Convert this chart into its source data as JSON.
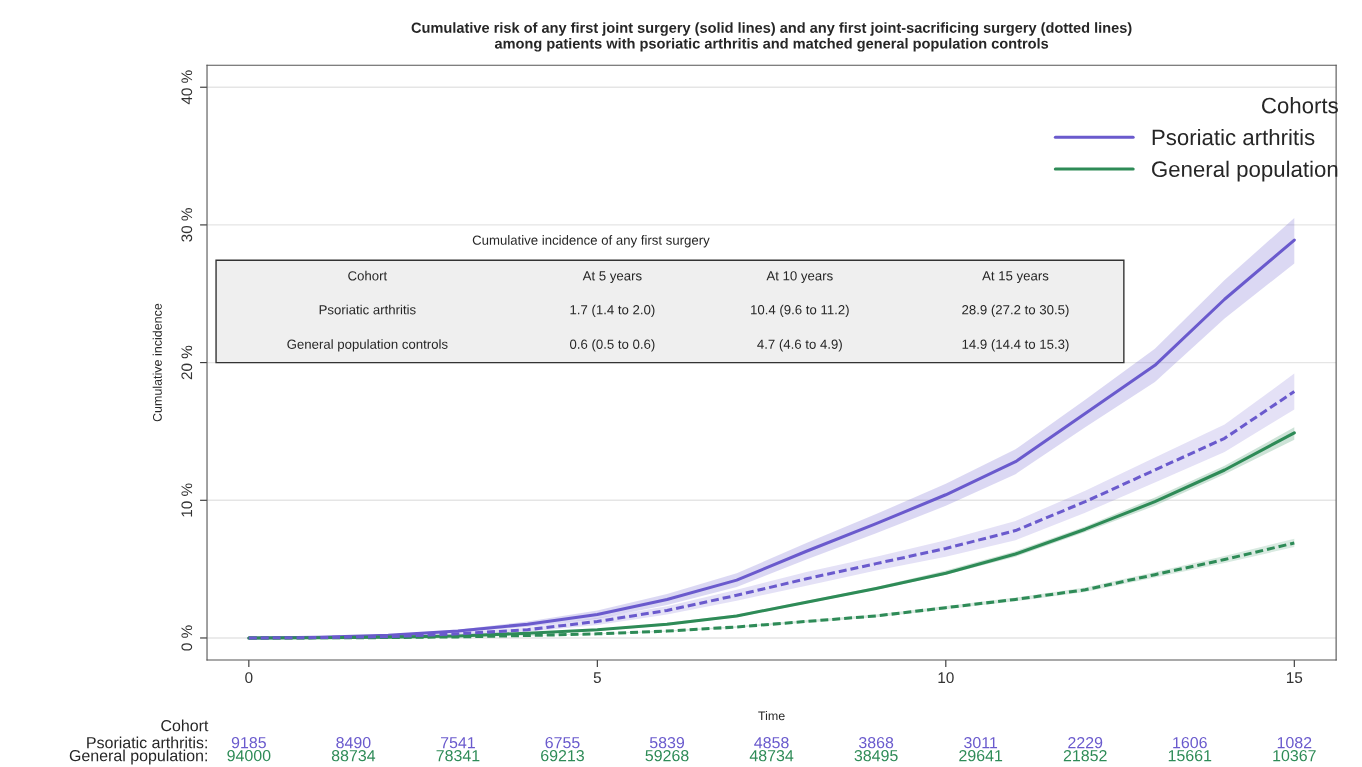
{
  "chart_data": {
    "type": "line",
    "title": "Cumulative risk of any first joint surgery (solid lines) and any first joint-sacrificing surgery (dotted lines)\namong patients with psoriatic arthritis and matched general population controls",
    "xlabel": "Time",
    "ylabel": "Cumulative incidence",
    "legend_title": "Cohorts",
    "x": [
      0,
      1,
      2,
      3,
      4,
      5,
      6,
      7,
      8,
      9,
      10,
      11,
      12,
      13,
      14,
      15
    ],
    "series": [
      {
        "name": "Psoriatic arthritis",
        "color": "#6a5acd",
        "line_style": "solid",
        "values": [
          0,
          0.05,
          0.2,
          0.5,
          1.0,
          1.7,
          2.8,
          4.2,
          6.3,
          8.3,
          10.4,
          12.8,
          16.3,
          19.8,
          24.6,
          28.9
        ],
        "lower": [
          0,
          0.03,
          0.15,
          0.4,
          0.8,
          1.4,
          2.4,
          3.7,
          5.7,
          7.6,
          9.6,
          11.9,
          15.3,
          18.6,
          23.2,
          27.2
        ],
        "upper": [
          0,
          0.08,
          0.25,
          0.6,
          1.2,
          2.0,
          3.2,
          4.7,
          6.9,
          9.0,
          11.2,
          13.7,
          17.3,
          21.0,
          26.0,
          30.5
        ]
      },
      {
        "color": "#6a5acd",
        "line_style": "dashed",
        "values": [
          0,
          0.03,
          0.1,
          0.3,
          0.6,
          1.2,
          2.0,
          3.1,
          4.3,
          5.4,
          6.5,
          7.8,
          9.9,
          12.2,
          14.5,
          17.9
        ],
        "lower": [
          0,
          0.02,
          0.07,
          0.2,
          0.45,
          0.95,
          1.7,
          2.7,
          3.8,
          4.9,
          5.9,
          7.1,
          9.1,
          11.3,
          13.5,
          16.6
        ],
        "upper": [
          0,
          0.05,
          0.14,
          0.4,
          0.75,
          1.45,
          2.3,
          3.5,
          4.8,
          5.9,
          7.1,
          8.5,
          10.7,
          13.1,
          15.5,
          19.2
        ]
      },
      {
        "name": "General population",
        "color": "#2e8b57",
        "line_style": "solid",
        "values": [
          0,
          0.02,
          0.06,
          0.15,
          0.35,
          0.6,
          1.0,
          1.6,
          2.6,
          3.6,
          4.7,
          6.1,
          7.9,
          9.9,
          12.2,
          14.9
        ],
        "lower": [
          0,
          0.01,
          0.05,
          0.13,
          0.32,
          0.5,
          0.9,
          1.5,
          2.5,
          3.5,
          4.6,
          5.9,
          7.7,
          9.6,
          11.9,
          14.4
        ],
        "upper": [
          0,
          0.03,
          0.07,
          0.17,
          0.38,
          0.6,
          1.1,
          1.7,
          2.7,
          3.7,
          4.9,
          6.3,
          8.1,
          10.2,
          12.5,
          15.3
        ]
      },
      {
        "color": "#2e8b57",
        "line_style": "dashed",
        "values": [
          0,
          0.01,
          0.03,
          0.08,
          0.18,
          0.3,
          0.5,
          0.8,
          1.2,
          1.6,
          2.2,
          2.8,
          3.5,
          4.6,
          5.7,
          6.9
        ],
        "lower": [
          0,
          0.005,
          0.02,
          0.07,
          0.15,
          0.27,
          0.45,
          0.74,
          1.12,
          1.5,
          2.08,
          2.66,
          3.33,
          4.4,
          5.45,
          6.6
        ],
        "upper": [
          0,
          0.015,
          0.04,
          0.09,
          0.21,
          0.33,
          0.55,
          0.86,
          1.28,
          1.7,
          2.32,
          2.94,
          3.67,
          4.8,
          5.95,
          7.2
        ]
      }
    ],
    "xlim": [
      -0.6,
      15.6
    ],
    "xticks": [
      0,
      5,
      10,
      15
    ],
    "ylim": [
      -1.6,
      41.6
    ],
    "yticks": [
      {
        "value": 0,
        "label": "0 %"
      },
      {
        "value": 10,
        "label": "10 %"
      },
      {
        "value": 20,
        "label": "20 %"
      },
      {
        "value": 30,
        "label": "30 %"
      },
      {
        "value": 40,
        "label": "40 %"
      }
    ],
    "grid": "y",
    "legend": "top right",
    "annotations": [
      "Cumulative incidence of any first surgery",
      "Cohort",
      "At 5 years",
      "At 10 years",
      "At 15 years",
      "Psoriatic arthritis",
      "1.7 (1.4 to 2.0)",
      "10.4 (9.6 to 11.2)",
      "28.9 (27.2 to 30.5)",
      "General population controls",
      "0.6 (0.5 to 0.6)",
      "4.7 (4.6 to 4.9)",
      "14.9 (14.4 to 15.3)",
      "Cohort",
      "Psoriatic arthritis:",
      "9185",
      "8490",
      "7541",
      "6755",
      "5839",
      "4858",
      "3868",
      "3011",
      "2229",
      "1606",
      "1082",
      "General population:",
      "94000",
      "88734",
      "78341",
      "69213",
      "59268",
      "48734",
      "38495",
      "29641",
      "21852",
      "15661",
      "10367"
    ]
  }
}
